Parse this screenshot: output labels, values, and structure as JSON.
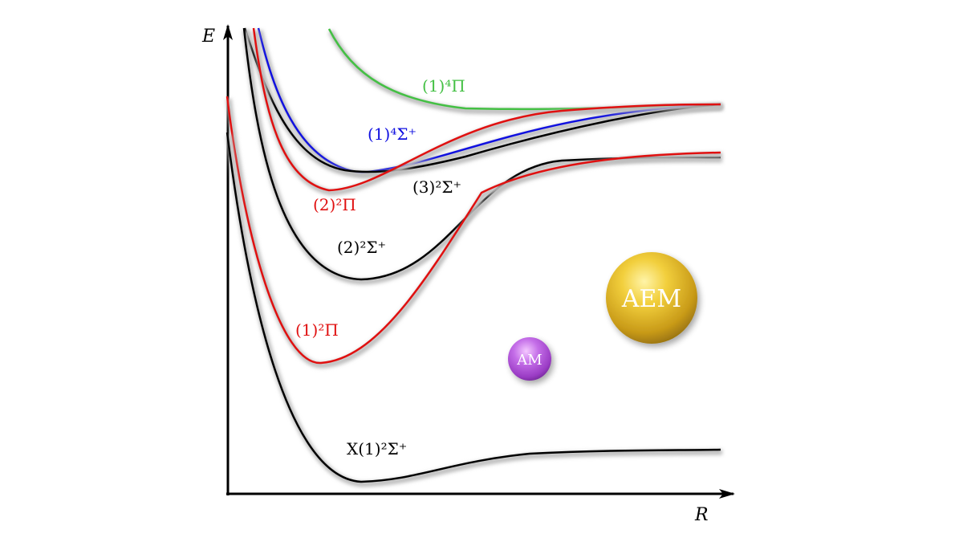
{
  "axes": {
    "y_label": "E",
    "x_label": "R"
  },
  "curves": [
    {
      "id": "X1-2Sigma+",
      "color": "#000000",
      "label": "X(1)²Σ⁺"
    },
    {
      "id": "1-2Pi",
      "color": "#e01010",
      "label": "(1)²Π"
    },
    {
      "id": "2-2Sigma+",
      "color": "#000000",
      "label": "(2)²Σ⁺"
    },
    {
      "id": "2-2Pi",
      "color": "#e01010",
      "label": "(2)²Π"
    },
    {
      "id": "3-2Sigma+",
      "color": "#000000",
      "label": "(3)²Σ⁺"
    },
    {
      "id": "1-4Sigma+",
      "color": "#1010e0",
      "label": "(1)⁴Σ⁺"
    },
    {
      "id": "1-4Pi",
      "color": "#44c044",
      "label": "(1)⁴Π"
    }
  ],
  "atoms": [
    {
      "label": "AEM",
      "color": "#e8c030"
    },
    {
      "label": "AM",
      "color": "#b050d8"
    }
  ]
}
